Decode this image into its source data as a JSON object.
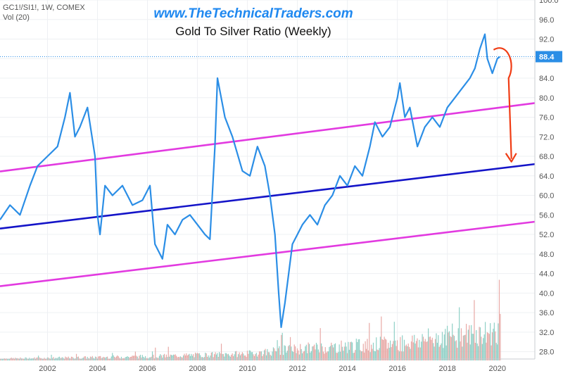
{
  "header": {
    "symbol": "GC1!/SI1!, 1W, COMEX",
    "volume_label": "Vol (20)",
    "watermark": "www.TheTechnicalTraders.com"
  },
  "chart_data": {
    "type": "line",
    "title": "Gold To Silver Ratio (Weekly)",
    "xlabel": "",
    "ylabel": "",
    "x_ticks": [
      2002,
      2004,
      2006,
      2008,
      2010,
      2012,
      2014,
      2016,
      2018,
      2020
    ],
    "y_ticks": [
      28.0,
      32.0,
      36.0,
      40.0,
      44.0,
      48.0,
      52.0,
      56.0,
      60.0,
      64.0,
      68.0,
      72.0,
      76.0,
      80.0,
      84.0,
      88.0,
      92.0,
      96.0,
      100.0
    ],
    "xlim": [
      2000.1,
      2021.5
    ],
    "ylim": [
      26.5,
      100.0
    ],
    "grid": true,
    "current_value": 88.4,
    "colors": {
      "ratio_line": "#2b8ee6",
      "upper_channel": "#e23ae0",
      "mid_channel": "#1414c8",
      "lower_channel": "#e23ae0",
      "arrow": "#f03c14",
      "price_tag": "#2b8ee6",
      "volume_up": "#e8a9a6",
      "volume_down": "#8fd0c6"
    },
    "series": [
      {
        "name": "",
        "x": [
          2000.1,
          2000.5,
          2000.9,
          2001.3,
          2001.6,
          2002.0,
          2002.4,
          2002.7,
          2002.9,
          2003.1,
          2003.3,
          2003.6,
          2003.9,
          2004.0,
          2004.1,
          2004.3,
          2004.6,
          2005.0,
          2005.4,
          2005.8,
          2006.1,
          2006.3,
          2006.6,
          2006.8,
          2007.1,
          2007.4,
          2007.7,
          2008.0,
          2008.3,
          2008.5,
          2008.7,
          2008.8,
          2008.95,
          2009.1,
          2009.4,
          2009.8,
          2010.1,
          2010.4,
          2010.7,
          2010.9,
          2011.1,
          2011.25,
          2011.35,
          2011.5,
          2011.65,
          2011.8,
          2012.0,
          2012.2,
          2012.5,
          2012.8,
          2013.1,
          2013.4,
          2013.7,
          2014.0,
          2014.3,
          2014.6,
          2014.9,
          2015.1,
          2015.4,
          2015.7,
          2016.0,
          2016.1,
          2016.3,
          2016.5,
          2016.8,
          2017.1,
          2017.4,
          2017.7,
          2018.0,
          2018.3,
          2018.6,
          2018.9,
          2019.1,
          2019.3,
          2019.5,
          2019.6,
          2019.8,
          2020.0,
          2020.1
        ],
        "values": [
          55,
          58,
          56,
          62,
          66,
          68,
          70,
          76,
          81,
          72,
          74,
          78,
          68,
          56,
          52,
          62,
          60,
          62,
          58,
          59,
          62,
          50,
          47,
          54,
          52,
          55,
          56,
          54,
          52,
          51,
          70,
          84,
          80,
          76,
          72,
          65,
          64,
          70,
          66,
          60,
          52,
          40,
          33,
          38,
          44,
          50,
          52,
          54,
          56,
          54,
          58,
          60,
          64,
          62,
          66,
          64,
          70,
          75,
          72,
          74,
          80,
          83,
          76,
          78,
          70,
          74,
          76,
          74,
          78,
          80,
          82,
          84,
          86,
          90,
          93,
          88,
          85,
          88,
          88.4
        ]
      }
    ],
    "channels": [
      {
        "name": "",
        "x": [
          2000.1,
          2021.5
        ],
        "values": [
          64.9,
          78.9
        ]
      },
      {
        "name": "",
        "x": [
          2000.1,
          2021.5
        ],
        "values": [
          53.2,
          66.4
        ]
      },
      {
        "name": "",
        "x": [
          2000.1,
          2021.5
        ],
        "values": [
          41.4,
          54.6
        ]
      }
    ],
    "volume_profile": [
      {
        "x": 2000.1,
        "v": 0.4
      },
      {
        "x": 2003.0,
        "v": 0.6
      },
      {
        "x": 2006.0,
        "v": 0.9
      },
      {
        "x": 2008.0,
        "v": 1.2
      },
      {
        "x": 2010.0,
        "v": 1.5
      },
      {
        "x": 2012.0,
        "v": 2.6
      },
      {
        "x": 2014.0,
        "v": 3.2
      },
      {
        "x": 2016.0,
        "v": 3.8
      },
      {
        "x": 2018.0,
        "v": 5.5
      },
      {
        "x": 2019.5,
        "v": 6.0
      },
      {
        "x": 2020.1,
        "v": 7.0
      }
    ]
  }
}
